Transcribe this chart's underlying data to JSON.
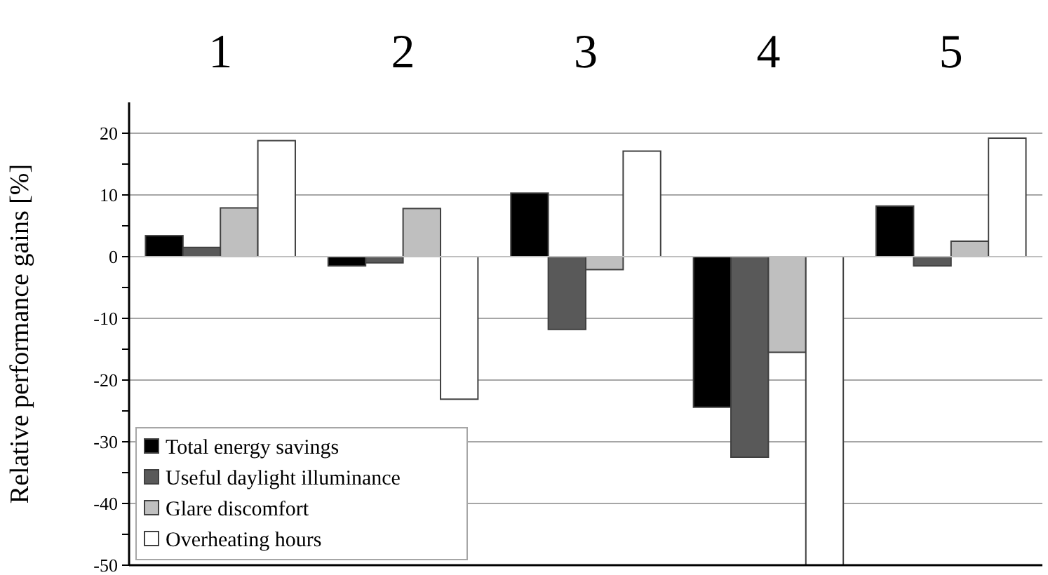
{
  "chart_data": {
    "type": "bar",
    "ylabel": "Relative performance gains [%]",
    "categories": [
      "1",
      "2",
      "3",
      "4",
      "5"
    ],
    "series": [
      {
        "name": "Total energy savings",
        "color": "#000000",
        "values": [
          3.4,
          -1.5,
          10.3,
          -24.4,
          8.2
        ]
      },
      {
        "name": "Useful daylight illuminance",
        "color": "#595959",
        "values": [
          1.5,
          -1.0,
          -11.8,
          -32.5,
          -1.5
        ]
      },
      {
        "name": "Glare discomfort",
        "color": "#bfbfbf",
        "values": [
          7.9,
          7.8,
          -2.1,
          -15.5,
          2.5
        ]
      },
      {
        "name": "Overheating hours",
        "color": "#ffffff",
        "values": [
          18.8,
          -23.1,
          17.1,
          -50,
          19.2
        ]
      }
    ],
    "ylim": [
      -50,
      25
    ],
    "yticks": [
      -50,
      {
        "value": -45,
        "label": null
      },
      -40,
      {
        "value": -35,
        "label": null
      },
      -30,
      {
        "value": -25,
        "label": null
      },
      -20,
      {
        "value": -15,
        "label": null
      },
      -10,
      {
        "value": -5,
        "label": null
      },
      0,
      {
        "value": 5,
        "label": null
      },
      10,
      {
        "value": 15,
        "label": null
      },
      20
    ],
    "grid": "y",
    "legend": "bottom left"
  }
}
